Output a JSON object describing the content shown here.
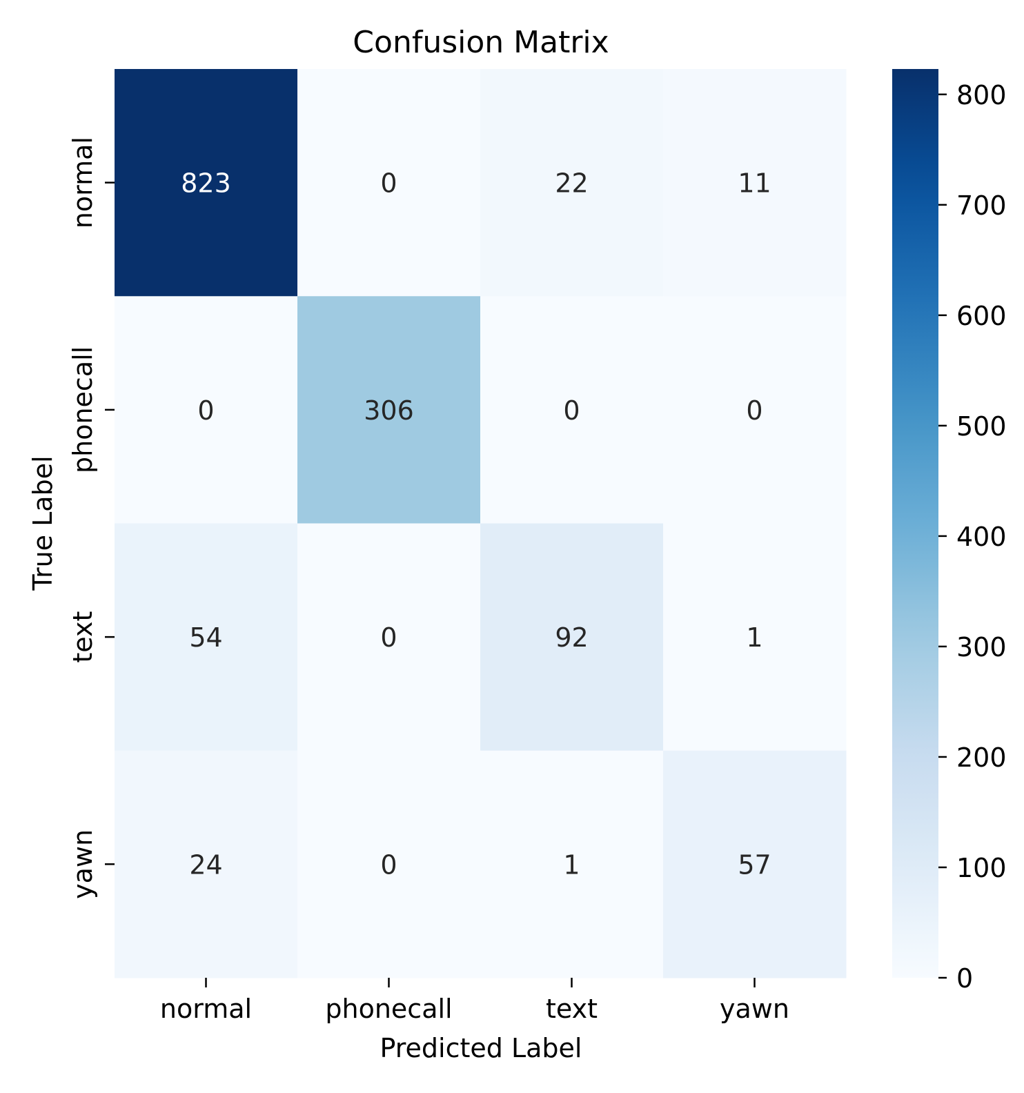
{
  "chart_data": {
    "type": "heatmap",
    "title": "Confusion Matrix",
    "xlabel": "Predicted Label",
    "ylabel": "True Label",
    "x_categories": [
      "normal",
      "phonecall",
      "text",
      "yawn"
    ],
    "y_categories": [
      "normal",
      "phonecall",
      "text",
      "yawn"
    ],
    "values": [
      [
        823,
        0,
        22,
        11
      ],
      [
        0,
        306,
        0,
        0
      ],
      [
        54,
        0,
        92,
        1
      ],
      [
        24,
        0,
        1,
        57
      ]
    ],
    "colormap": "Blues",
    "colorbar": {
      "min": 0,
      "max": 823,
      "ticks": [
        0,
        100,
        200,
        300,
        400,
        500,
        600,
        700,
        800
      ],
      "tick_labels": [
        "0",
        "100",
        "200",
        "300",
        "400",
        "500",
        "600",
        "700",
        "800"
      ]
    },
    "annotation_colors": {
      "dark": "#262626",
      "light": "#ffffff"
    }
  }
}
